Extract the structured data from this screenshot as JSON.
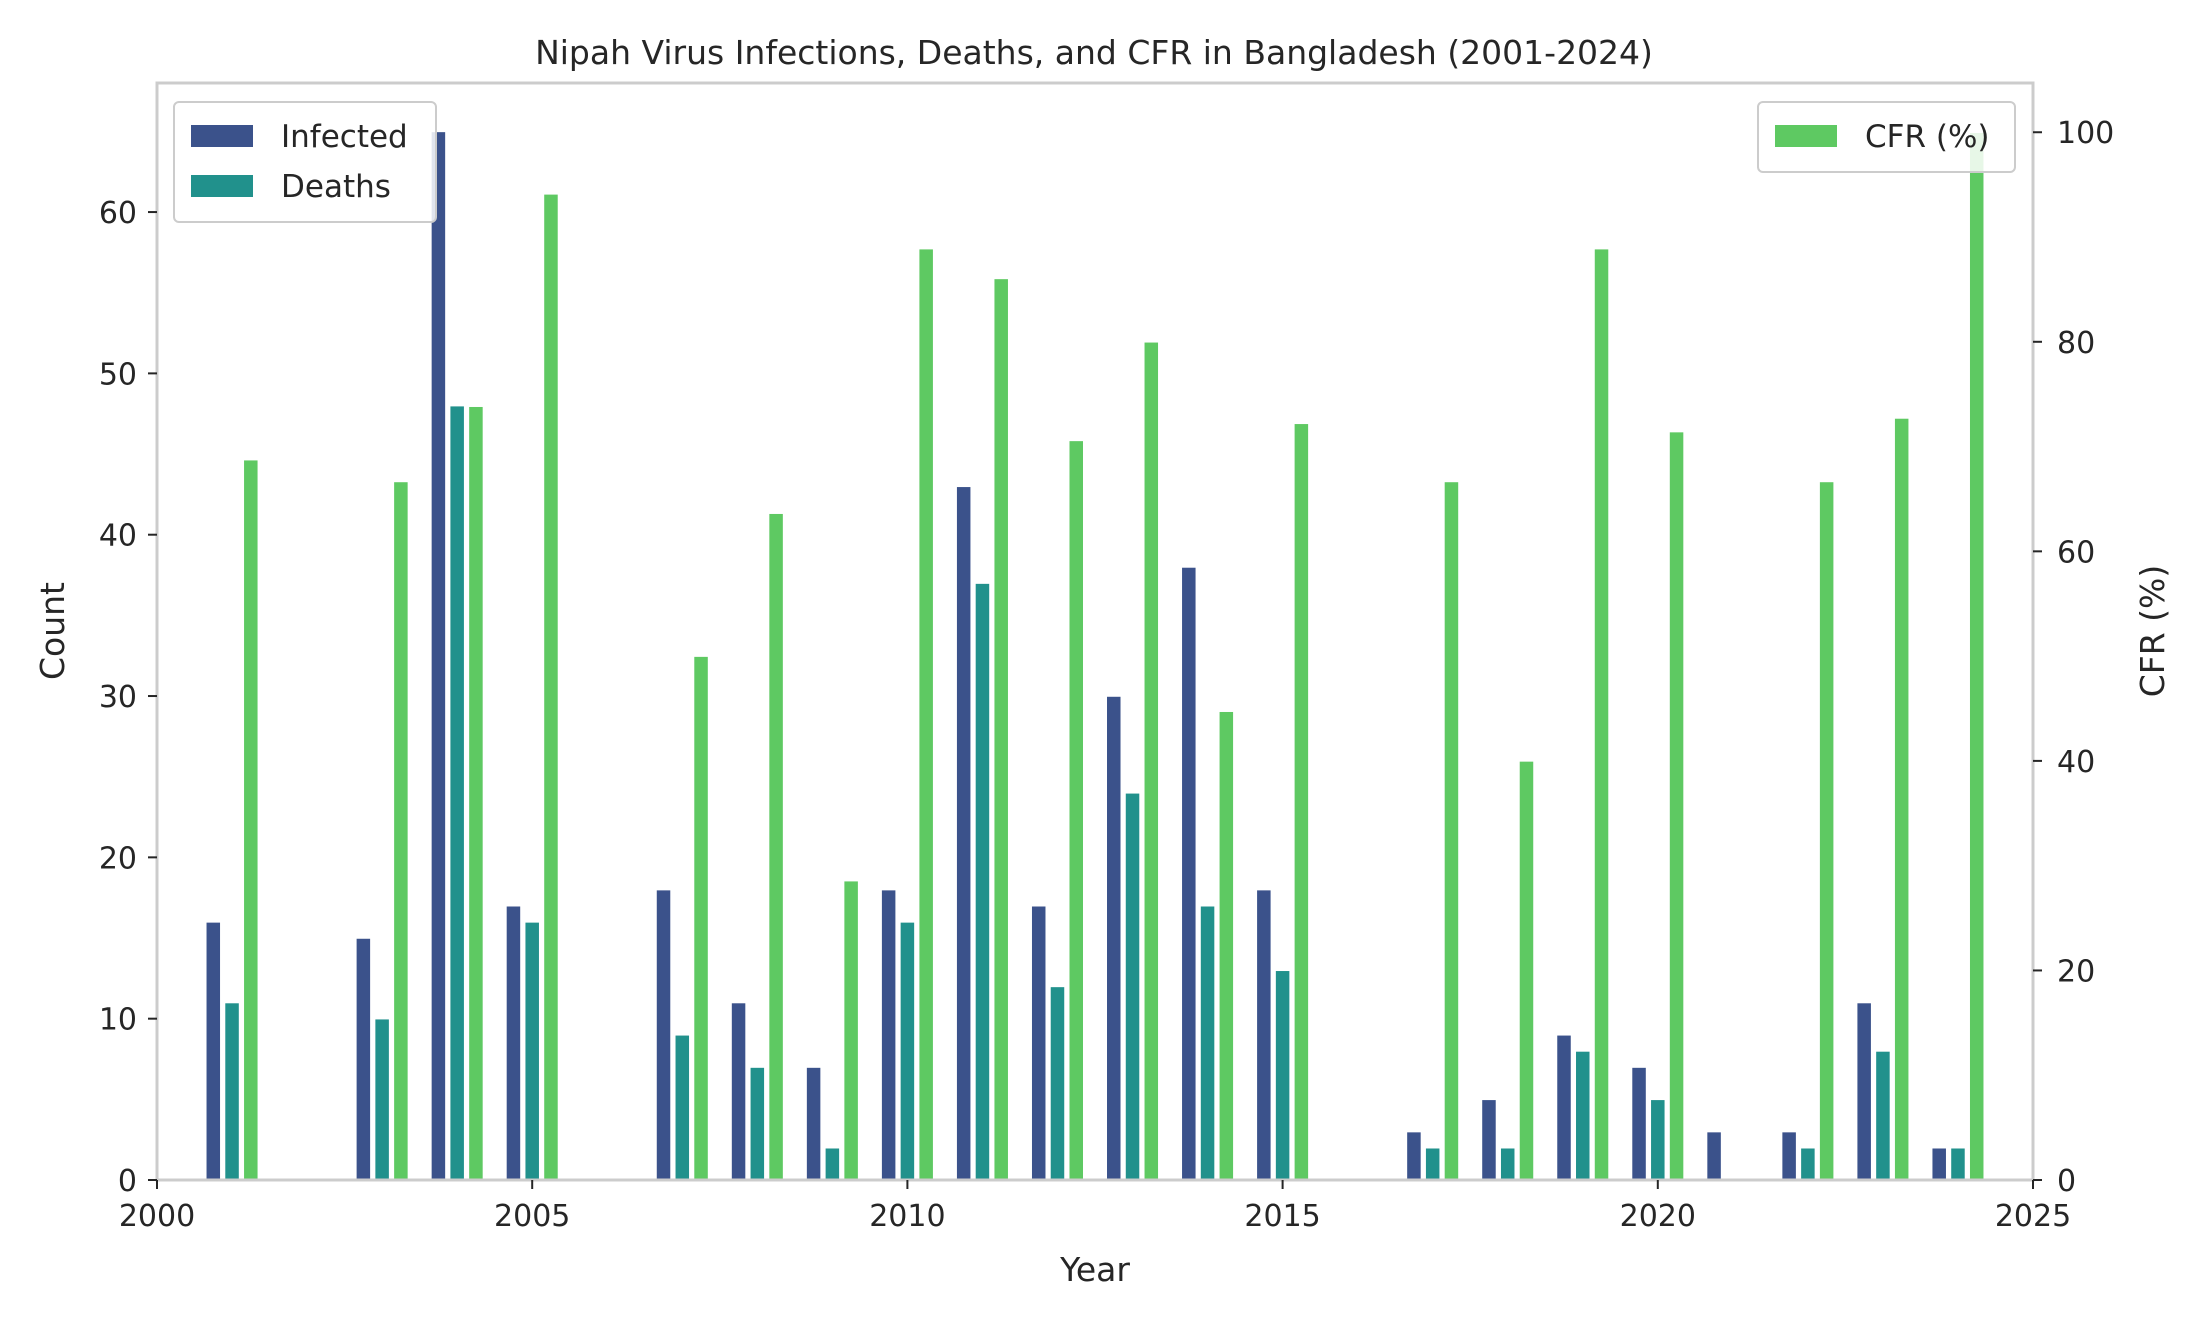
{
  "chart_data": {
    "type": "bar",
    "title": "Nipah Virus Infections, Deaths, and CFR in Bangladesh (2001-2024)",
    "xlabel": "Year",
    "ylabel": "Count",
    "y2label": "CFR (%)",
    "xlim": [
      2000,
      2025
    ],
    "ylim": [
      0,
      68
    ],
    "y2lim": [
      0,
      104.7
    ],
    "x_ticks": [
      "2000",
      "2005",
      "2010",
      "2015",
      "2020",
      "2025"
    ],
    "y_ticks": [
      "0",
      "10",
      "20",
      "30",
      "40",
      "50",
      "60"
    ],
    "y2_ticks": [
      "0",
      "20",
      "40",
      "60",
      "80",
      "100"
    ],
    "grid": false,
    "categories": [
      2001,
      2003,
      2004,
      2005,
      2007,
      2008,
      2009,
      2010,
      2011,
      2012,
      2013,
      2014,
      2015,
      2017,
      2018,
      2019,
      2020,
      2021,
      2022,
      2023,
      2024
    ],
    "series": [
      {
        "name": "Infected",
        "axis": "left",
        "color": "#3b528b",
        "values": [
          16,
          15,
          65,
          17,
          18,
          11,
          7,
          18,
          43,
          17,
          30,
          38,
          18,
          3,
          5,
          9,
          7,
          3,
          3,
          11,
          2
        ]
      },
      {
        "name": "Deaths",
        "axis": "left",
        "color": "#21918c",
        "values": [
          11,
          10,
          48,
          16,
          9,
          7,
          2,
          16,
          37,
          12,
          24,
          17,
          13,
          2,
          2,
          8,
          5,
          0,
          2,
          8,
          2
        ]
      },
      {
        "name": "CFR (%)",
        "axis": "right",
        "color": "#5ec962",
        "values": [
          68.75,
          66.67,
          73.85,
          94.12,
          50.0,
          63.64,
          28.57,
          88.89,
          86.05,
          70.59,
          80.0,
          44.74,
          72.22,
          66.67,
          40.0,
          88.89,
          71.43,
          0,
          66.67,
          72.73,
          100.0
        ]
      }
    ],
    "legend_left": "top-left",
    "legend_right": "top-right"
  }
}
